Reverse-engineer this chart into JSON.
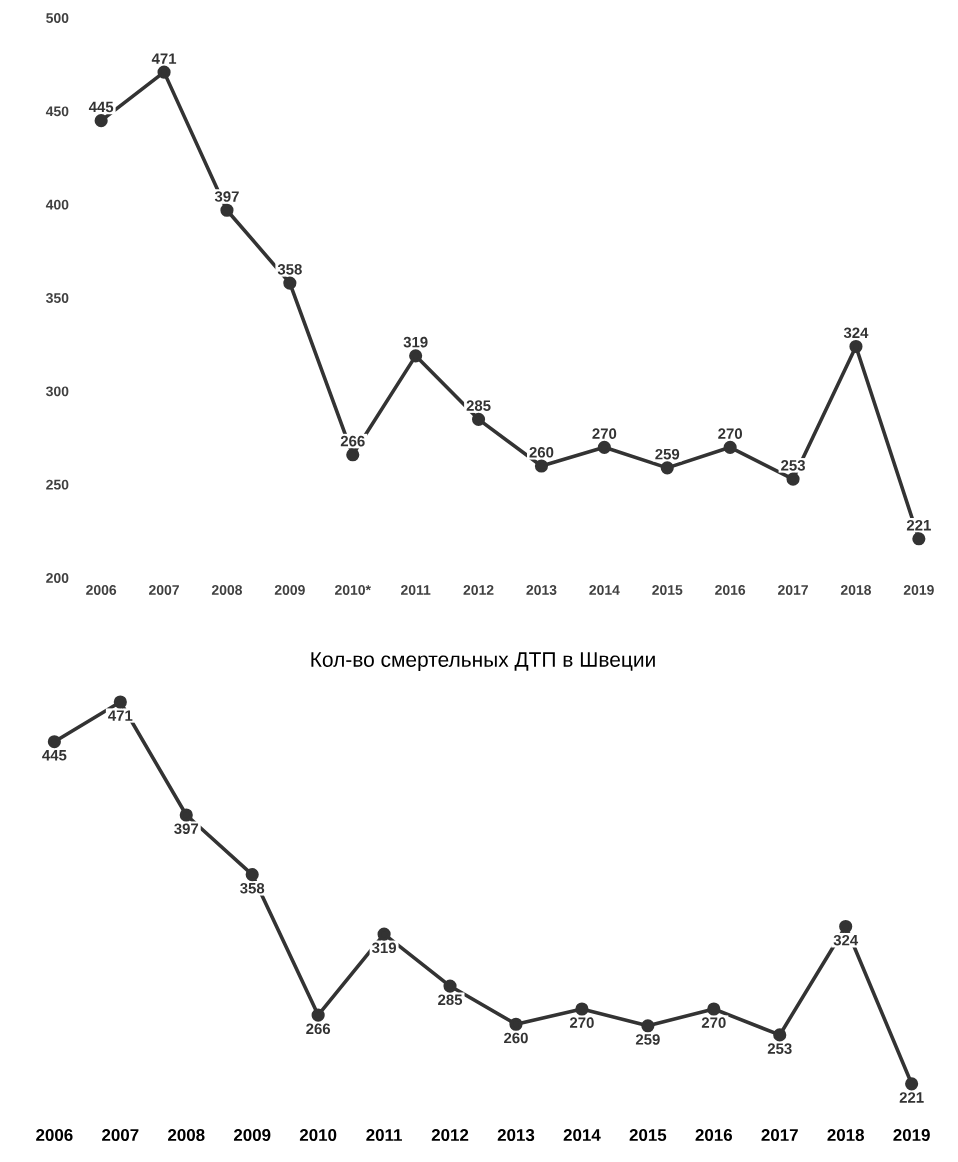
{
  "chart_data": [
    {
      "type": "line",
      "categories": [
        "2006",
        "2007",
        "2008",
        "2009",
        "2010*",
        "2011",
        "2012",
        "2013",
        "2014",
        "2015",
        "2016",
        "2017",
        "2018",
        "2019"
      ],
      "values": [
        445,
        471,
        397,
        358,
        266,
        319,
        285,
        260,
        270,
        259,
        270,
        253,
        324,
        221
      ],
      "color": "#333333",
      "marker": "circle",
      "line_style": "solid",
      "data_labels": true,
      "ylim": [
        200,
        500
      ],
      "yticks": [
        200,
        250,
        300,
        350,
        400,
        450,
        500
      ]
    },
    {
      "type": "line",
      "title": "Кол-во смертельных ДТП в Швеции",
      "categories": [
        "2006",
        "2007",
        "2008",
        "2009",
        "2010",
        "2011",
        "2012",
        "2013",
        "2014",
        "2015",
        "2016",
        "2017",
        "2018",
        "2019"
      ],
      "values": [
        445,
        471,
        397,
        358,
        266,
        319,
        285,
        260,
        270,
        259,
        270,
        253,
        324,
        221
      ],
      "color": "#333333",
      "marker": "circle",
      "line_style": "solid",
      "data_labels": true
    }
  ]
}
